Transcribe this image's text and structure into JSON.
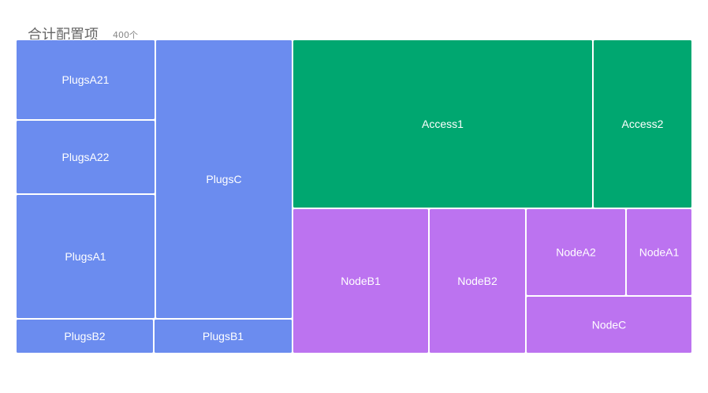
{
  "colors": {
    "plugs": "#6b8cef",
    "access": "#00a770",
    "node": "#bc73f0"
  },
  "chart_data": {
    "type": "treemap",
    "title": "合计配置项",
    "subtitle": "400个",
    "items": [
      {
        "name": "PlugsA21",
        "group": "plugs"
      },
      {
        "name": "PlugsA22",
        "group": "plugs"
      },
      {
        "name": "PlugsA1",
        "group": "plugs"
      },
      {
        "name": "PlugsC",
        "group": "plugs"
      },
      {
        "name": "PlugsB2",
        "group": "plugs"
      },
      {
        "name": "PlugsB1",
        "group": "plugs"
      },
      {
        "name": "Access1",
        "group": "access"
      },
      {
        "name": "Access2",
        "group": "access"
      },
      {
        "name": "NodeB1",
        "group": "node"
      },
      {
        "name": "NodeB2",
        "group": "node"
      },
      {
        "name": "NodeA2",
        "group": "node"
      },
      {
        "name": "NodeA1",
        "group": "node"
      },
      {
        "name": "NodeC",
        "group": "node"
      }
    ]
  }
}
